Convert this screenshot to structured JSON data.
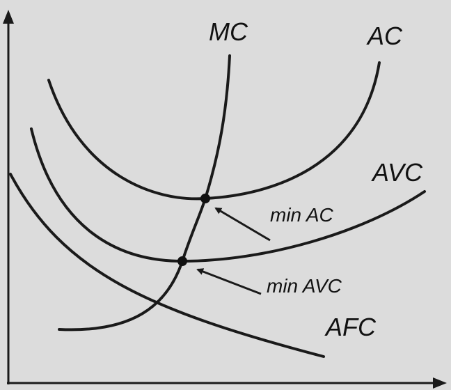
{
  "curves": [
    {
      "label": "MC"
    },
    {
      "label": "AC"
    },
    {
      "label": "AVC"
    },
    {
      "label": "AFC"
    }
  ],
  "points": [
    {
      "label": "min AC"
    },
    {
      "label": "min AVC"
    }
  ]
}
